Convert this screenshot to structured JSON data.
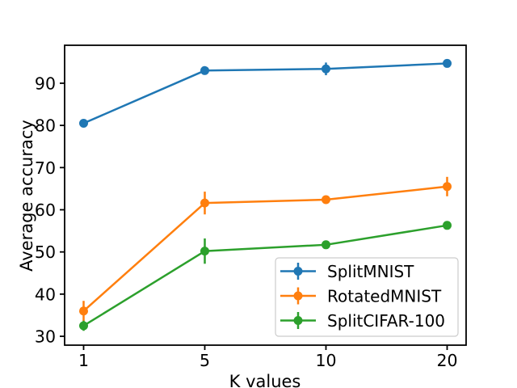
{
  "figure": {
    "background": "#ffffff",
    "text_color": "#000000"
  },
  "chart_data": {
    "type": "line",
    "title": "",
    "xlabel": "K values",
    "ylabel": "Average accuracy",
    "categories": [
      "1",
      "5",
      "10",
      "20"
    ],
    "series": [
      {
        "name": "SplitMNIST",
        "color": "#1f77b4",
        "values": [
          80.5,
          93.0,
          93.4,
          94.7
        ],
        "errors": [
          0.3,
          1.0,
          1.5,
          0.5
        ]
      },
      {
        "name": "RotatedMNIST",
        "color": "#ff7f0e",
        "values": [
          36.0,
          61.6,
          62.4,
          65.5
        ],
        "errors": [
          2.4,
          2.7,
          0.6,
          2.3
        ]
      },
      {
        "name": "SplitCIFAR-100",
        "color": "#2ca02c",
        "values": [
          32.5,
          50.2,
          51.7,
          56.3
        ],
        "errors": [
          1.2,
          3.0,
          0.6,
          0.4
        ]
      }
    ],
    "yticks": [
      30,
      40,
      50,
      60,
      70,
      80,
      90
    ],
    "ylim": [
      27.9,
      99.0
    ],
    "grid": false,
    "marker": "circle-with-error-bars",
    "legend_position": "lower-right-inside",
    "legend_border_color": "#cccccc",
    "axis_color": "#000000"
  }
}
